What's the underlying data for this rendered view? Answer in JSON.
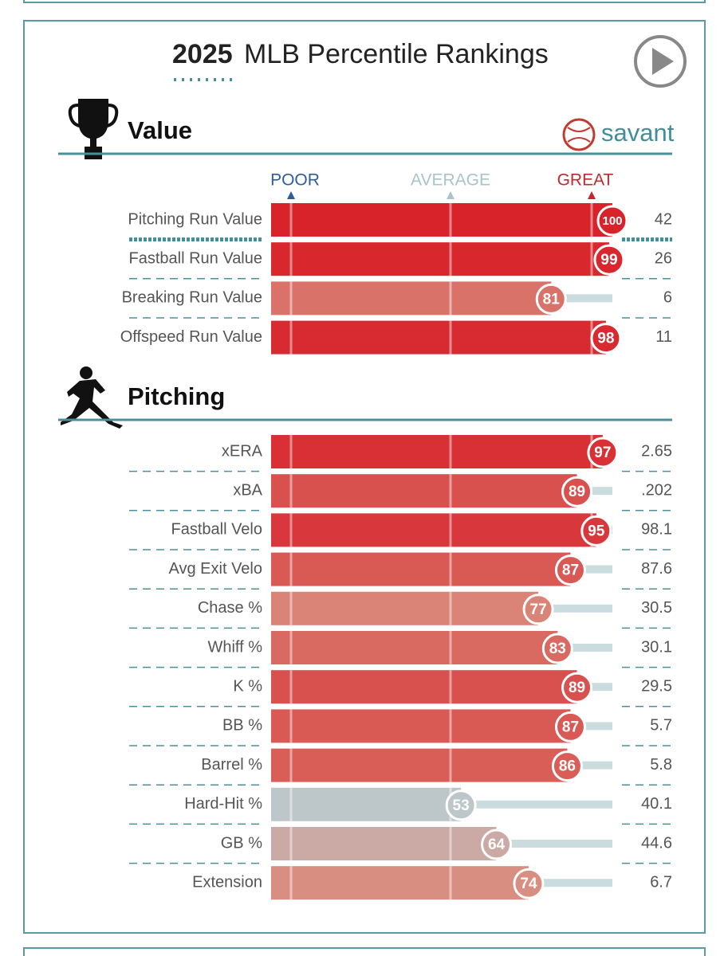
{
  "header": {
    "year": "2025",
    "title": "MLB Percentile Rankings"
  },
  "brand": "savant",
  "scale": {
    "poor": "POOR",
    "average": "AVERAGE",
    "great": "GREAT"
  },
  "sections": [
    {
      "title": "Value",
      "rows": [
        {
          "label": "Pitching Run Value",
          "percentile": 100,
          "stat": "42"
        },
        {
          "label": "Fastball Run Value",
          "percentile": 99,
          "stat": "26"
        },
        {
          "label": "Breaking Run Value",
          "percentile": 81,
          "stat": "6"
        },
        {
          "label": "Offspeed Run Value",
          "percentile": 98,
          "stat": "11"
        }
      ]
    },
    {
      "title": "Pitching",
      "rows": [
        {
          "label": "xERA",
          "percentile": 97,
          "stat": "2.65"
        },
        {
          "label": "xBA",
          "percentile": 89,
          "stat": ".202"
        },
        {
          "label": "Fastball Velo",
          "percentile": 95,
          "stat": "98.1"
        },
        {
          "label": "Avg Exit Velo",
          "percentile": 87,
          "stat": "87.6"
        },
        {
          "label": "Chase %",
          "percentile": 77,
          "stat": "30.5"
        },
        {
          "label": "Whiff %",
          "percentile": 83,
          "stat": "30.1"
        },
        {
          "label": "K %",
          "percentile": 89,
          "stat": "29.5"
        },
        {
          "label": "BB %",
          "percentile": 87,
          "stat": "5.7"
        },
        {
          "label": "Barrel %",
          "percentile": 86,
          "stat": "5.8"
        },
        {
          "label": "Hard-Hit %",
          "percentile": 53,
          "stat": "40.1"
        },
        {
          "label": "GB %",
          "percentile": 64,
          "stat": "44.6"
        },
        {
          "label": "Extension",
          "percentile": 74,
          "stat": "6.7"
        }
      ]
    }
  ]
}
